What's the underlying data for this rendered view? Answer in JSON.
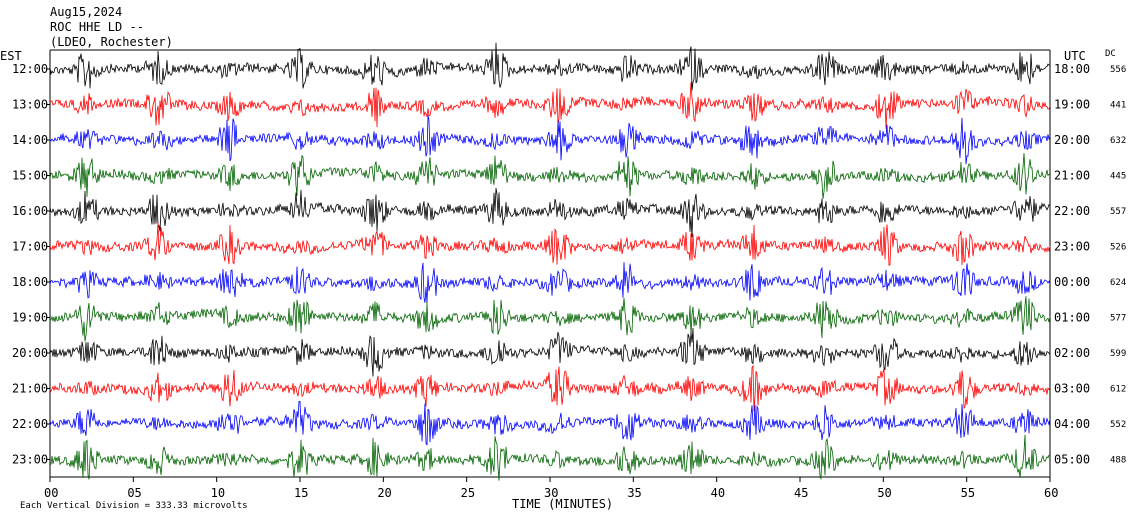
{
  "header": {
    "line1": "Aug15,2024",
    "line2": "ROC HHE LD --",
    "line3": "(LDEO, Rochester)"
  },
  "chart_data": {
    "type": "line",
    "title": "Aug15,2024",
    "left_axis_label": "EST",
    "right_axis_label": "UTC",
    "dc_label": "DC",
    "xlabel": "TIME (MINUTES)",
    "xlim": [
      0,
      60
    ],
    "x_ticks": [
      "00",
      "05",
      "10",
      "15",
      "20",
      "25",
      "30",
      "35",
      "40",
      "45",
      "50",
      "55",
      "60"
    ],
    "rows": [
      {
        "est": "12:00",
        "utc": "18:00",
        "dc": "556",
        "color": "#000000"
      },
      {
        "est": "13:00",
        "utc": "19:00",
        "dc": "441",
        "color": "#ff0000"
      },
      {
        "est": "14:00",
        "utc": "20:00",
        "dc": "632",
        "color": "#0000ff"
      },
      {
        "est": "15:00",
        "utc": "21:00",
        "dc": "445",
        "color": "#006400"
      },
      {
        "est": "16:00",
        "utc": "22:00",
        "dc": "557",
        "color": "#000000"
      },
      {
        "est": "17:00",
        "utc": "23:00",
        "dc": "526",
        "color": "#ff0000"
      },
      {
        "est": "18:00",
        "utc": "00:00",
        "dc": "624",
        "color": "#0000ff"
      },
      {
        "est": "19:00",
        "utc": "01:00",
        "dc": "577",
        "color": "#006400"
      },
      {
        "est": "20:00",
        "utc": "02:00",
        "dc": "599",
        "color": "#000000"
      },
      {
        "est": "21:00",
        "utc": "03:00",
        "dc": "612",
        "color": "#ff0000"
      },
      {
        "est": "22:00",
        "utc": "04:00",
        "dc": "552",
        "color": "#0000ff"
      },
      {
        "est": "23:00",
        "utc": "05:00",
        "dc": "488",
        "color": "#006400"
      }
    ],
    "burst_minutes": [
      2.2,
      6.5,
      10.8,
      15.0,
      19.5,
      22.6,
      26.8,
      30.5,
      34.6,
      38.5,
      42.2,
      46.5,
      50.2,
      54.8,
      58.5
    ],
    "footer_note": "Each Vertical Division =  333.33 microvolts"
  }
}
